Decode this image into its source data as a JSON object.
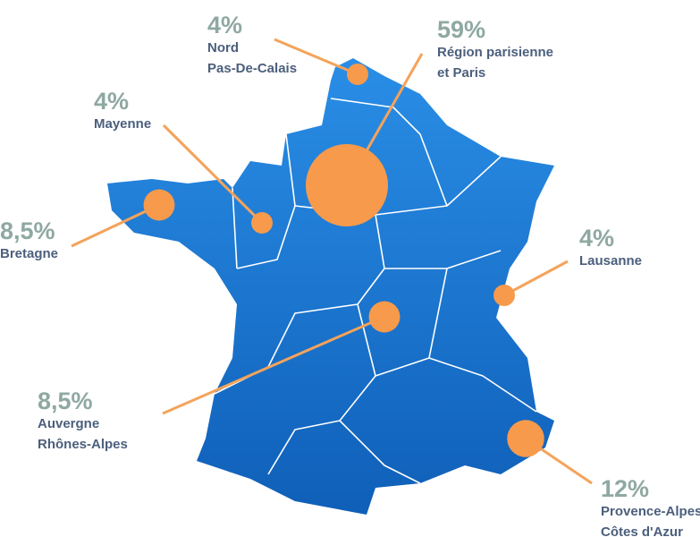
{
  "regions": [
    {
      "value": 4,
      "value_label": "4%",
      "name_lines": [
        "Nord",
        "Pas-De-Calais"
      ]
    },
    {
      "value": 59,
      "value_label": "59%",
      "name_lines": [
        "Région parisienne",
        "et Paris"
      ]
    },
    {
      "value": 4,
      "value_label": "4%",
      "name_lines": [
        "Mayenne"
      ]
    },
    {
      "value": 8.5,
      "value_label": "8,5%",
      "name_lines": [
        "Bretagne"
      ]
    },
    {
      "value": 4,
      "value_label": "4%",
      "name_lines": [
        "Lausanne"
      ]
    },
    {
      "value": 8.5,
      "value_label": "8,5%",
      "name_lines": [
        "Auvergne",
        "Rhônes-Alpes"
      ]
    },
    {
      "value": 12,
      "value_label": "12%",
      "name_lines": [
        "Provence-Alpes",
        "Côtes d'Azur"
      ]
    }
  ]
}
